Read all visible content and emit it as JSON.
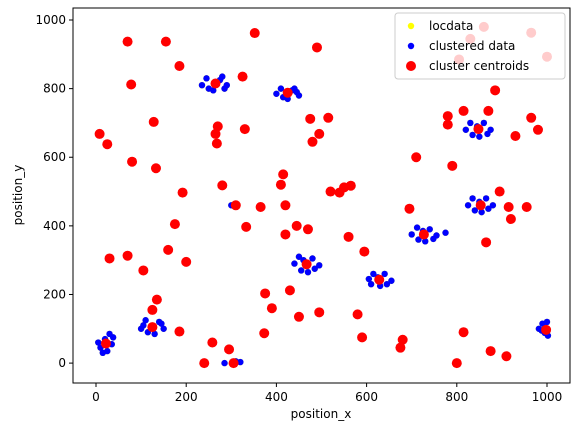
{
  "chart_data": {
    "type": "scatter",
    "xlabel": "position_x",
    "ylabel": "position_y",
    "xlim": [
      -51,
      1051
    ],
    "ylim": [
      -58,
      1035
    ],
    "xticks": [
      0,
      200,
      400,
      600,
      800,
      1000
    ],
    "yticks": [
      0,
      200,
      400,
      600,
      800,
      1000
    ],
    "legend": "upper right",
    "series": [
      {
        "name": "locdata",
        "color": "#ffff00",
        "x": [
          10,
          20,
          35,
          25,
          5,
          38,
          15,
          30,
          100,
          110,
          140,
          150,
          130,
          115,
          145,
          105,
          235,
          245,
          280,
          290,
          260,
          250,
          275,
          285,
          400,
          410,
          440,
          450,
          425,
          415,
          435,
          445,
          440,
          450,
          480,
          495,
          470,
          455,
          485,
          460,
          605,
          615,
          640,
          655,
          630,
          610,
          645,
          625,
          700,
          712,
          740,
          755,
          730,
          715,
          748,
          725,
          820,
          830,
          860,
          875,
          850,
          835,
          868,
          845,
          825,
          835,
          865,
          880,
          855,
          840,
          870,
          850,
          982,
          990,
          1000,
          1002,
          995,
          988,
          300,
          308,
          285,
          310,
          320,
          775
        ],
        "values": [
          45,
          70,
          55,
          35,
          60,
          75,
          30,
          85,
          100,
          125,
          120,
          100,
          85,
          90,
          115,
          110,
          810,
          830,
          835,
          810,
          795,
          800,
          825,
          800,
          785,
          800,
          800,
          780,
          770,
          775,
          795,
          790,
          290,
          310,
          305,
          285,
          265,
          270,
          275,
          300,
          245,
          260,
          260,
          240,
          225,
          230,
          230,
          250,
          375,
          395,
          390,
          372,
          355,
          360,
          362,
          385,
          680,
          700,
          700,
          680,
          660,
          665,
          668,
          690,
          460,
          480,
          480,
          460,
          440,
          445,
          450,
          470,
          100,
          115,
          120,
          80,
          88,
          95,
          460,
          462,
          0,
          5,
          3,
          380
        ]
      },
      {
        "name": "clustered data",
        "color": "#0000ff",
        "x": [
          10,
          20,
          35,
          25,
          5,
          38,
          15,
          30,
          100,
          110,
          140,
          150,
          130,
          115,
          145,
          105,
          235,
          245,
          280,
          290,
          260,
          250,
          275,
          285,
          400,
          410,
          440,
          450,
          425,
          415,
          435,
          445,
          440,
          450,
          480,
          495,
          470,
          455,
          485,
          460,
          605,
          615,
          640,
          655,
          630,
          610,
          645,
          625,
          700,
          712,
          740,
          755,
          730,
          715,
          748,
          725,
          820,
          830,
          860,
          875,
          850,
          835,
          868,
          845,
          825,
          835,
          865,
          880,
          855,
          840,
          870,
          850,
          982,
          990,
          1000,
          1002,
          995,
          988,
          300,
          308,
          285,
          310,
          320,
          775
        ],
        "values": [
          45,
          70,
          55,
          35,
          60,
          75,
          30,
          85,
          100,
          125,
          120,
          100,
          85,
          90,
          115,
          110,
          810,
          830,
          835,
          810,
          795,
          800,
          825,
          800,
          785,
          800,
          800,
          780,
          770,
          775,
          795,
          790,
          290,
          310,
          305,
          285,
          265,
          270,
          275,
          300,
          245,
          260,
          260,
          240,
          225,
          230,
          230,
          250,
          375,
          395,
          390,
          372,
          355,
          360,
          362,
          385,
          680,
          700,
          700,
          680,
          660,
          665,
          668,
          690,
          460,
          480,
          480,
          460,
          440,
          445,
          450,
          470,
          100,
          115,
          120,
          80,
          88,
          95,
          460,
          462,
          0,
          5,
          3,
          380
        ]
      },
      {
        "name": "cluster centroids",
        "color": "#ff0000",
        "x": [
          22,
          125,
          265,
          425,
          467,
          628,
          727,
          848,
          853,
          998,
          8,
          25,
          70,
          78,
          80,
          128,
          133,
          155,
          185,
          192,
          160,
          175,
          200,
          105,
          70,
          30,
          125,
          135,
          185,
          240,
          258,
          295,
          305,
          265,
          268,
          270,
          280,
          310,
          325,
          330,
          333,
          352,
          365,
          373,
          375,
          390,
          410,
          415,
          420,
          420,
          430,
          445,
          450,
          470,
          475,
          480,
          490,
          495,
          495,
          515,
          520,
          540,
          550,
          565,
          560,
          580,
          590,
          595,
          675,
          680,
          695,
          710,
          780,
          780,
          790,
          800,
          805,
          815,
          815,
          830,
          860,
          865,
          870,
          875,
          885,
          895,
          910,
          915,
          920,
          930,
          955,
          965,
          965,
          980,
          1000
        ],
        "values": [
          57,
          105,
          815,
          788,
          288,
          243,
          375,
          682,
          460,
          97,
          668,
          638,
          937,
          812,
          587,
          703,
          568,
          937,
          866,
          497,
          330,
          405,
          295,
          270,
          313,
          305,
          155,
          185,
          92,
          0,
          60,
          40,
          0,
          668,
          640,
          690,
          518,
          460,
          835,
          682,
          397,
          962,
          455,
          87,
          203,
          160,
          520,
          550,
          460,
          375,
          212,
          400,
          135,
          390,
          712,
          645,
          920,
          148,
          668,
          715,
          500,
          497,
          512,
          517,
          368,
          142,
          75,
          325,
          45,
          68,
          450,
          600,
          695,
          720,
          575,
          0,
          885,
          90,
          735,
          945,
          980,
          352,
          735,
          35,
          795,
          500,
          20,
          455,
          420,
          662,
          455,
          963,
          715,
          680,
          893
        ]
      }
    ]
  }
}
